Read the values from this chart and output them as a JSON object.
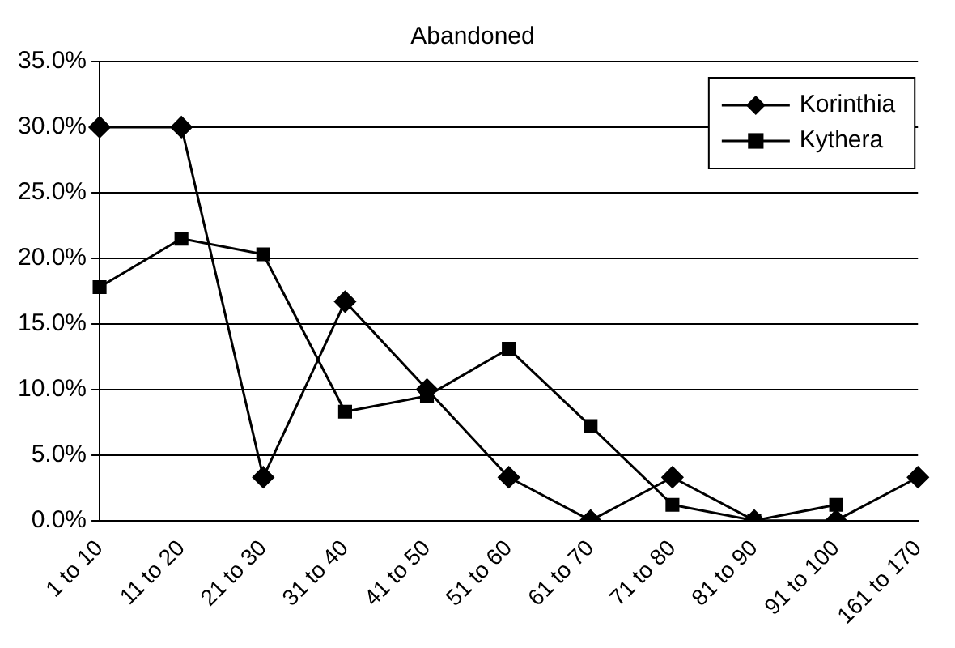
{
  "chart_data": {
    "type": "line",
    "title": "Abandoned",
    "categories": [
      "1 to 10",
      "11 to 20",
      "21 to 30",
      "31 to 40",
      "41 to 50",
      "51 to 60",
      "61 to 70",
      "71 to 80",
      "81 to 90",
      "91 to 100",
      "161 to 170"
    ],
    "series": [
      {
        "name": "Korinthia",
        "color": "#000000",
        "marker": "diamond",
        "values": [
          30,
          30,
          3.3,
          16.7,
          10,
          3.3,
          0,
          3.3,
          0,
          0,
          3.3
        ]
      },
      {
        "name": "Kythera",
        "color": "#000000",
        "marker": "square",
        "values": [
          17.8,
          21.5,
          20.3,
          8.3,
          9.5,
          13.1,
          7.2,
          1.2,
          0,
          1.2,
          null
        ]
      }
    ],
    "ylim": [
      0,
      35
    ],
    "yticks": [
      {
        "value": 0,
        "label": "0.0%"
      },
      {
        "value": 5,
        "label": "5.0%"
      },
      {
        "value": 10,
        "label": "10.0%"
      },
      {
        "value": 15,
        "label": "15.0%"
      },
      {
        "value": 20,
        "label": "20.0%"
      },
      {
        "value": 25,
        "label": "25.0%"
      },
      {
        "value": 30,
        "label": "30.0%"
      },
      {
        "value": 35,
        "label": "35.0%"
      }
    ],
    "grid": "y",
    "legend": "top right",
    "line_style": "solid"
  }
}
